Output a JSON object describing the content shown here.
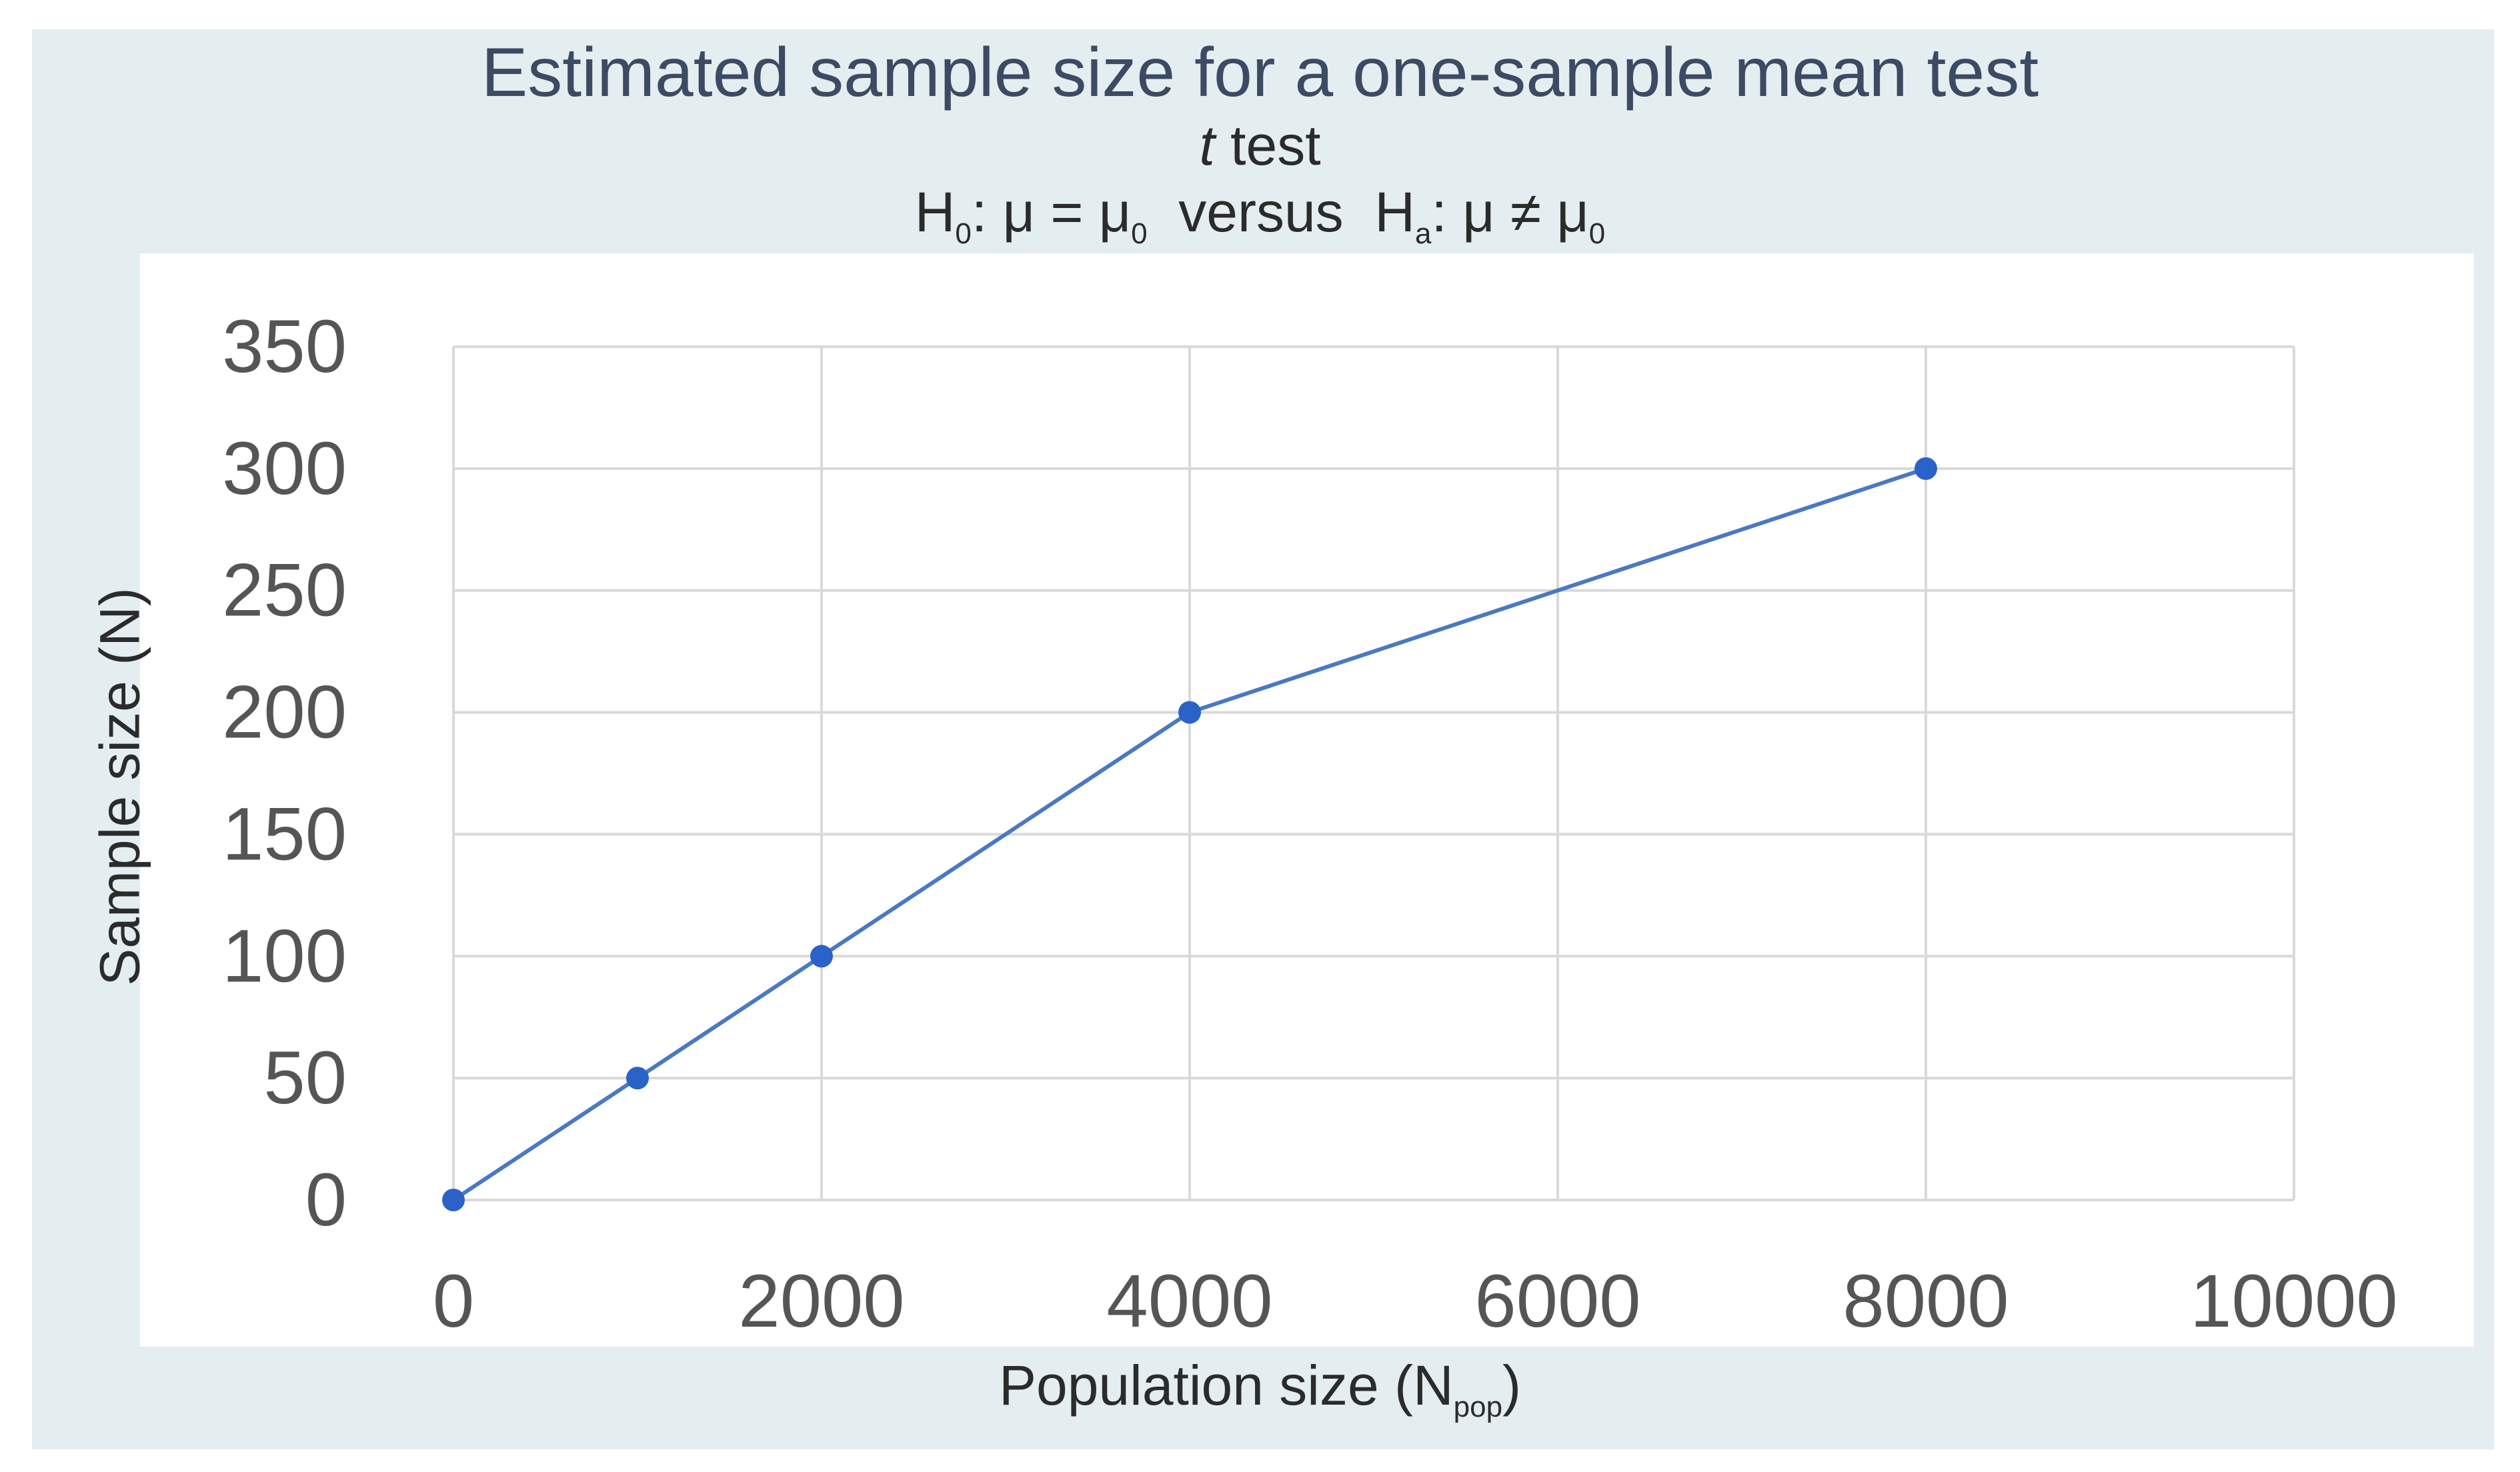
{
  "chart_data": {
    "type": "line",
    "title": "Estimated sample size for a one-sample mean test",
    "subtitle_italic": "t",
    "subtitle_rest": " test",
    "hypothesis_h0_prefix": "H",
    "hypothesis_h0_sub": "0",
    "hypothesis_h0_rest": ": μ = μ",
    "hypothesis_mu0_sub": "0",
    "hypothesis_versus": "  versus  ",
    "hypothesis_ha_prefix": "H",
    "hypothesis_ha_sub": "a",
    "hypothesis_ha_rest": ": μ ≠ μ",
    "hypothesis_mu0_sub2": "0",
    "xlabel_main": "Population size (N",
    "xlabel_sub": "pop",
    "xlabel_end": ")",
    "ylabel": "Sample size (N)",
    "xlim": [
      0,
      10000
    ],
    "ylim": [
      0,
      350
    ],
    "x_ticks": [
      "0",
      "2000",
      "4000",
      "6000",
      "8000",
      "10000"
    ],
    "y_ticks": [
      "0",
      "50",
      "100",
      "150",
      "200",
      "250",
      "300",
      "350"
    ],
    "grid": true,
    "series": [
      {
        "x": [
          0,
          1000,
          2000,
          4000,
          8000
        ],
        "y": [
          0,
          50,
          100,
          200,
          300
        ],
        "color": "#4a78c4",
        "marker_color": "#2a62c8"
      }
    ]
  }
}
